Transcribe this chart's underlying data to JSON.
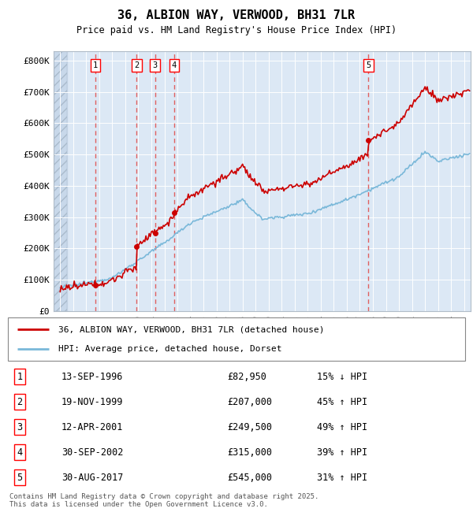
{
  "title": "36, ALBION WAY, VERWOOD, BH31 7LR",
  "subtitle": "Price paid vs. HM Land Registry's House Price Index (HPI)",
  "legend_line1": "36, ALBION WAY, VERWOOD, BH31 7LR (detached house)",
  "legend_line2": "HPI: Average price, detached house, Dorset",
  "footnote": "Contains HM Land Registry data © Crown copyright and database right 2025.\nThis data is licensed under the Open Government Licence v3.0.",
  "transactions": [
    {
      "num": 1,
      "date": "13-SEP-1996",
      "year": 1996.71,
      "price": 82950,
      "pct": "15%",
      "dir": "↓"
    },
    {
      "num": 2,
      "date": "19-NOV-1999",
      "year": 1999.88,
      "price": 207000,
      "pct": "45%",
      "dir": "↑"
    },
    {
      "num": 3,
      "date": "12-APR-2001",
      "year": 2001.28,
      "price": 249500,
      "pct": "49%",
      "dir": "↑"
    },
    {
      "num": 4,
      "date": "30-SEP-2002",
      "year": 2002.75,
      "price": 315000,
      "pct": "39%",
      "dir": "↑"
    },
    {
      "num": 5,
      "date": "30-AUG-2017",
      "year": 2017.66,
      "price": 545000,
      "pct": "31%",
      "dir": "↑"
    }
  ],
  "hpi_color": "#7ab8d9",
  "price_color": "#cc0000",
  "dashed_color": "#e06060",
  "bg_plot": "#dce8f5",
  "bg_hatch": "#c8d8ea",
  "ylim": [
    0,
    830000
  ],
  "xlim_start": 1993.5,
  "xlim_end": 2025.5,
  "yticks": [
    0,
    100000,
    200000,
    300000,
    400000,
    500000,
    600000,
    700000,
    800000
  ],
  "ytick_labels": [
    "£0",
    "£100K",
    "£200K",
    "£300K",
    "£400K",
    "£500K",
    "£600K",
    "£700K",
    "£800K"
  ]
}
